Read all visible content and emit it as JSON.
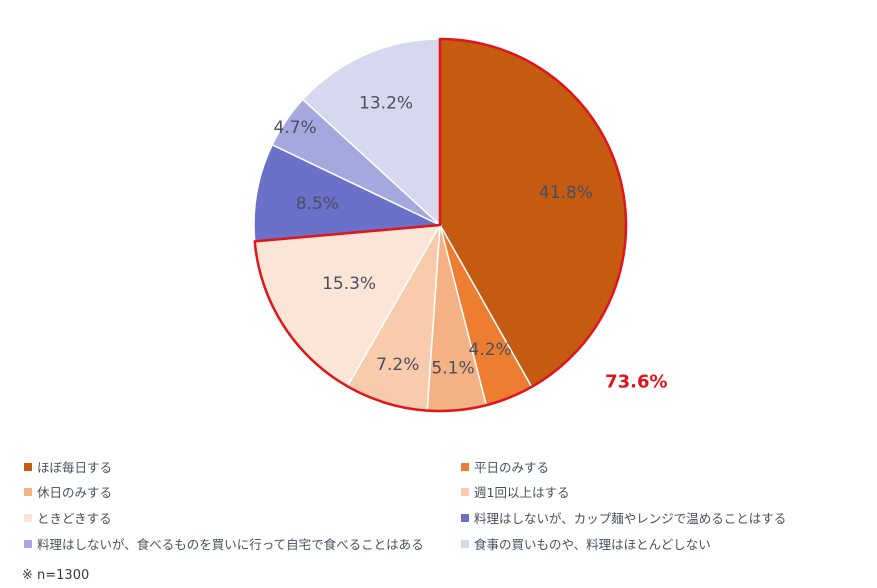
{
  "chart_data": {
    "type": "pie",
    "categories": [
      "ほぼ毎日する",
      "平日のみする",
      "休日のみする",
      "週1回以上はする",
      "ときどきする",
      "料理はしないが、カップ麺やレンジで温めることはする",
      "料理はしないが、食べるものを買いに行って自宅で食べることはある",
      "食事の買いものや、料理はほとんどしない"
    ],
    "values": [
      41.8,
      4.2,
      5.1,
      7.2,
      15.3,
      8.5,
      4.7,
      13.2
    ],
    "value_labels": [
      "41.8%",
      "4.2%",
      "5.1%",
      "7.2%",
      "15.3%",
      "8.5%",
      "4.7%",
      "13.2%"
    ],
    "colors": [
      "#c55a11",
      "#ed7d31",
      "#f4b183",
      "#f8cbad",
      "#fbe5d6",
      "#6b70c8",
      "#a5a8de",
      "#d6d8ef"
    ],
    "legend_position": "bottom",
    "highlight": {
      "label": "73.6%",
      "from_index": 0,
      "to_index": 4,
      "color": "#e0141b"
    }
  },
  "note": "※ n=1300"
}
